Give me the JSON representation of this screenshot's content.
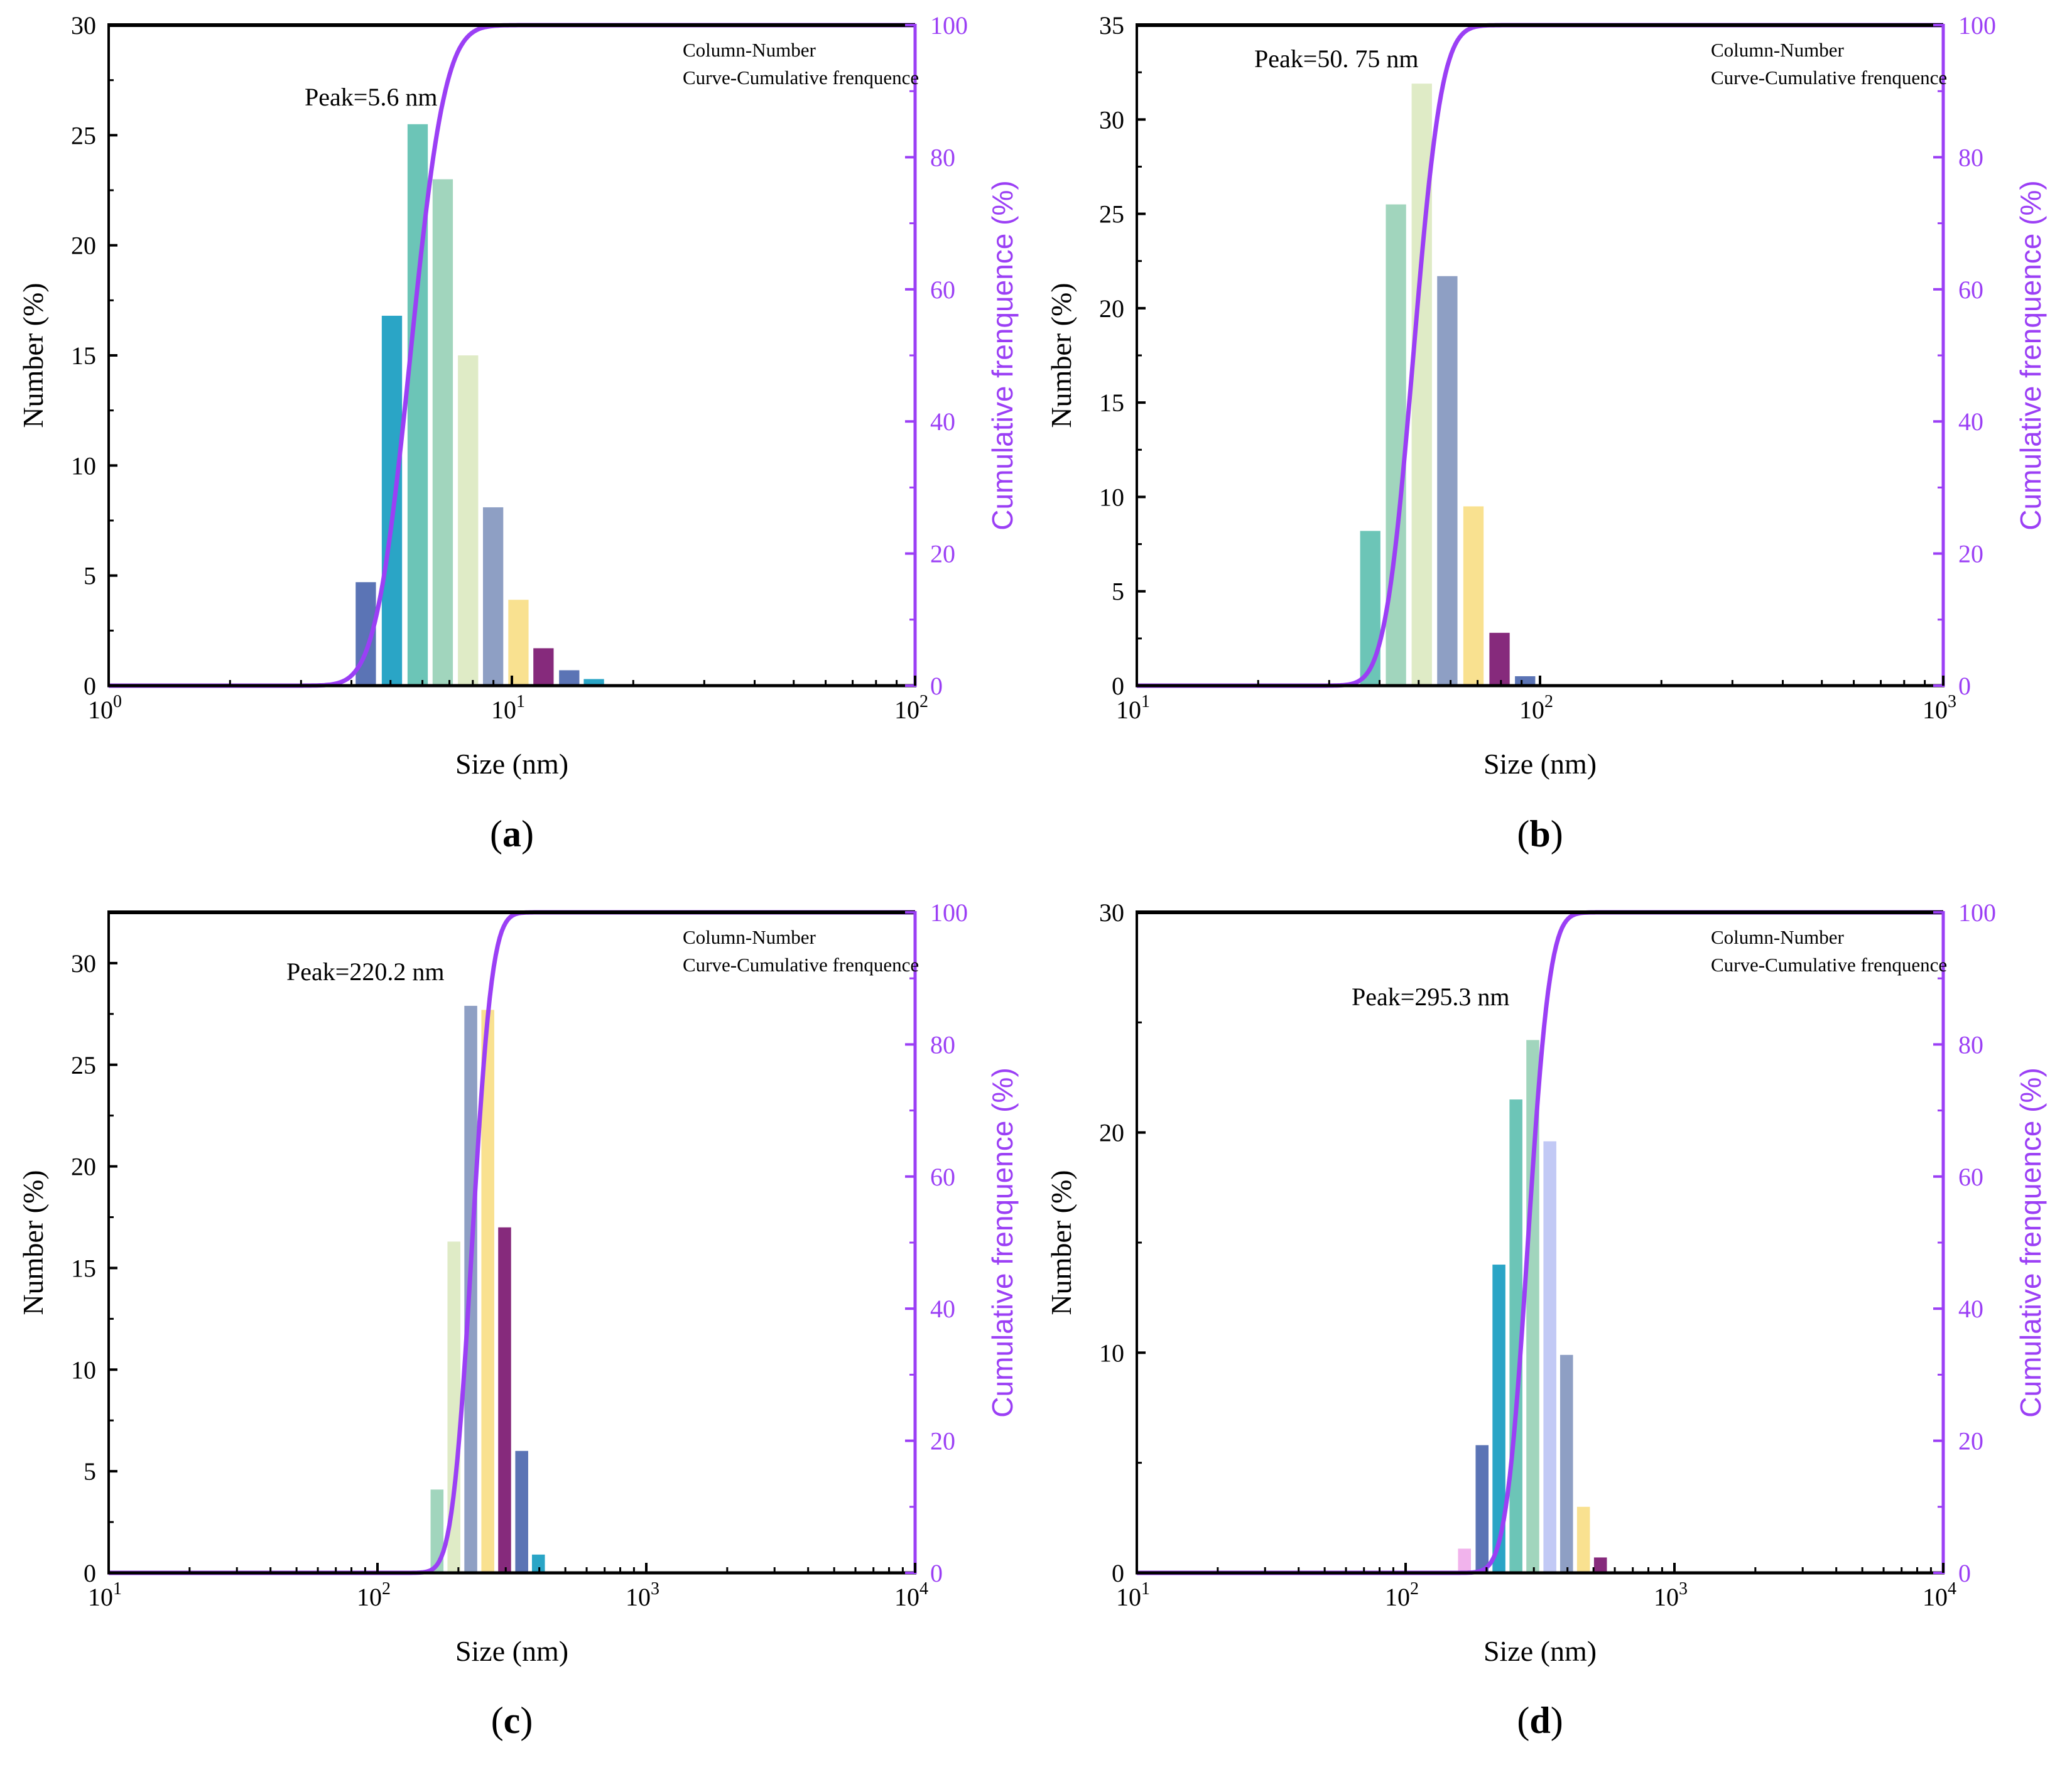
{
  "chart_data": [
    {
      "panel_label": "a",
      "type": "bar+line",
      "xlabel": "Size (nm)",
      "ylabel": "Number (%)",
      "y2label": "Cumulative frenquence (%)",
      "xscale": "log",
      "xlim": [
        1,
        100
      ],
      "x_ticks": [
        {
          "base": "10",
          "exp": "0"
        },
        {
          "base": "10",
          "exp": "1"
        },
        {
          "base": "10",
          "exp": "2"
        }
      ],
      "ylim": [
        0,
        30
      ],
      "y_ticks": [
        0,
        5,
        10,
        15,
        20,
        25,
        30
      ],
      "y2lim": [
        0,
        100
      ],
      "y2_ticks": [
        0,
        20,
        40,
        60,
        80,
        100
      ],
      "legend": [
        "Column-Number",
        "Curve-Cumulative frenquence"
      ],
      "legend_position": "top-right",
      "annotation": "Peak=5.6 nm",
      "bars": [
        {
          "x": 4.35,
          "value": 4.7,
          "color": "#5b74b5"
        },
        {
          "x": 5.05,
          "value": 16.8,
          "color": "#2aa5c6"
        },
        {
          "x": 5.85,
          "value": 25.5,
          "color": "#6cc5b7"
        },
        {
          "x": 6.75,
          "value": 23.0,
          "color": "#a1d5bd"
        },
        {
          "x": 7.8,
          "value": 15.0,
          "color": "#dfebc6"
        },
        {
          "x": 9.0,
          "value": 8.1,
          "color": "#8e9fc4"
        },
        {
          "x": 10.4,
          "value": 3.9,
          "color": "#f9e190"
        },
        {
          "x": 12.0,
          "value": 1.7,
          "color": "#862a7c"
        },
        {
          "x": 13.9,
          "value": 0.7,
          "color": "#5b74b5"
        },
        {
          "x": 16.0,
          "value": 0.3,
          "color": "#2aa5c6"
        }
      ],
      "cumulative_curve": {
        "center": 5.6,
        "sigma_log10": 0.0675,
        "color": "#9b3ff5"
      }
    },
    {
      "panel_label": "b",
      "type": "bar+line",
      "xlabel": "Size (nm)",
      "ylabel": "Number (%)",
      "y2label": "Cumulative frenquence (%)",
      "xscale": "log",
      "xlim": [
        10,
        1000
      ],
      "x_ticks": [
        {
          "base": "10",
          "exp": "1"
        },
        {
          "base": "10",
          "exp": "2"
        },
        {
          "base": "10",
          "exp": "3"
        }
      ],
      "ylim": [
        0,
        35
      ],
      "y_ticks": [
        0,
        5,
        10,
        15,
        20,
        25,
        30,
        35
      ],
      "y2lim": [
        0,
        100
      ],
      "y2_ticks": [
        0,
        20,
        40,
        60,
        80,
        100
      ],
      "legend": [
        "Column-Number",
        "Curve-Cumulative frenquence"
      ],
      "legend_position": "top-right",
      "annotation": "Peak=50. 75 nm",
      "bars": [
        {
          "x": 38.0,
          "value": 8.2,
          "color": "#6cc5b7"
        },
        {
          "x": 44.0,
          "value": 25.5,
          "color": "#a1d5bd"
        },
        {
          "x": 51.0,
          "value": 31.9,
          "color": "#dfebc6"
        },
        {
          "x": 59.0,
          "value": 21.7,
          "color": "#8e9fc4"
        },
        {
          "x": 68.5,
          "value": 9.5,
          "color": "#f9e190"
        },
        {
          "x": 79.5,
          "value": 2.8,
          "color": "#862a7c"
        },
        {
          "x": 92.0,
          "value": 0.5,
          "color": "#5b74b5"
        }
      ],
      "cumulative_curve": {
        "center": 48.5,
        "sigma_log10": 0.055,
        "color": "#9b3ff5"
      }
    },
    {
      "panel_label": "c",
      "type": "bar+line",
      "xlabel": "Size (nm)",
      "ylabel": "Number (%)",
      "y2label": "Cumulative frenquence (%)",
      "xscale": "log",
      "xlim": [
        10,
        10000
      ],
      "x_ticks": [
        {
          "base": "10",
          "exp": "1"
        },
        {
          "base": "10",
          "exp": "2"
        },
        {
          "base": "10",
          "exp": "3"
        },
        {
          "base": "10",
          "exp": "4"
        }
      ],
      "ylim": [
        0,
        32.5
      ],
      "y_ticks": [
        0,
        5,
        10,
        15,
        20,
        25,
        30
      ],
      "y2lim": [
        0,
        100
      ],
      "y2_ticks": [
        0,
        20,
        40,
        60,
        80,
        100
      ],
      "legend": [
        "Column-Number",
        "Curve-Cumulative frenquence"
      ],
      "legend_position": "top-right",
      "annotation": "Peak=220.2 nm",
      "bars": [
        {
          "x": 167,
          "value": 4.1,
          "color": "#a1d5bd"
        },
        {
          "x": 193,
          "value": 16.3,
          "color": "#dfebc6"
        },
        {
          "x": 223,
          "value": 27.9,
          "color": "#8e9fc4"
        },
        {
          "x": 258,
          "value": 27.7,
          "color": "#f9e190"
        },
        {
          "x": 298,
          "value": 17.0,
          "color": "#862a7c"
        },
        {
          "x": 345,
          "value": 6.0,
          "color": "#5b74b5"
        },
        {
          "x": 398,
          "value": 0.9,
          "color": "#2aa5c6"
        }
      ],
      "cumulative_curve": {
        "center": 225,
        "sigma_log10": 0.058,
        "color": "#9b3ff5"
      }
    },
    {
      "panel_label": "d",
      "type": "bar+line",
      "xlabel": "Size (nm)",
      "ylabel": "Number (%)",
      "y2label": "Cumulative frenquence (%)",
      "xscale": "log",
      "xlim": [
        10,
        10000
      ],
      "x_ticks": [
        {
          "base": "10",
          "exp": "1"
        },
        {
          "base": "10",
          "exp": "2"
        },
        {
          "base": "10",
          "exp": "3"
        },
        {
          "base": "10",
          "exp": "4"
        }
      ],
      "ylim": [
        0,
        30
      ],
      "y_ticks": [
        0,
        10,
        20,
        30
      ],
      "y2lim": [
        0,
        100
      ],
      "y2_ticks": [
        0,
        20,
        40,
        60,
        80,
        100
      ],
      "legend": [
        "Column-Number",
        "Curve-Cumulative frenquence"
      ],
      "legend_position": "top-right",
      "annotation": "Peak=295.3 nm",
      "bars": [
        {
          "x": 166,
          "value": 1.1,
          "color": "#f1b3ec"
        },
        {
          "x": 193,
          "value": 5.8,
          "color": "#5b74b5"
        },
        {
          "x": 223,
          "value": 14.0,
          "color": "#2aa5c6"
        },
        {
          "x": 258,
          "value": 21.5,
          "color": "#6cc5b7"
        },
        {
          "x": 298,
          "value": 24.2,
          "color": "#a1d5bd"
        },
        {
          "x": 345,
          "value": 19.6,
          "color": "#c2c9f5"
        },
        {
          "x": 398,
          "value": 9.9,
          "color": "#8e9fc4"
        },
        {
          "x": 460,
          "value": 3.0,
          "color": "#f9e190"
        },
        {
          "x": 532,
          "value": 0.7,
          "color": "#862a7c"
        }
      ],
      "cumulative_curve": {
        "center": 285,
        "sigma_log10": 0.064,
        "color": "#9b3ff5"
      }
    }
  ]
}
